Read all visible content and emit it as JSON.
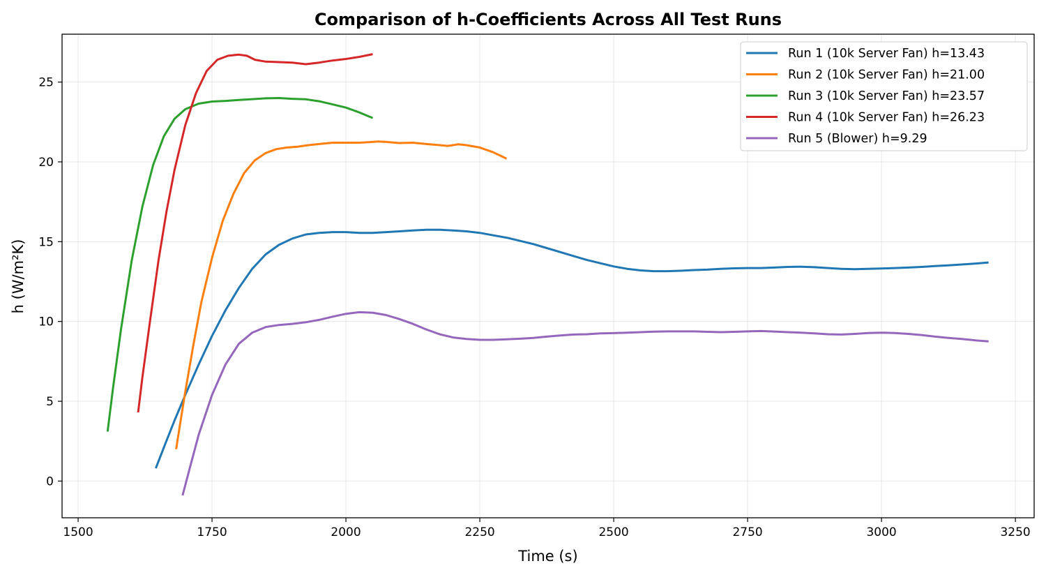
{
  "chart_data": {
    "type": "line",
    "title": "Comparison of h-Coefficients Across All Test Runs",
    "xlabel": "Time (s)",
    "ylabel": "h (W/m²K)",
    "xlim": [
      1470,
      3285
    ],
    "ylim": [
      -2.3,
      28.0
    ],
    "xticks": [
      1500,
      1750,
      2000,
      2250,
      2500,
      2750,
      3000,
      3250
    ],
    "yticks": [
      0,
      5,
      10,
      15,
      20,
      25
    ],
    "grid": true,
    "legend_position": "upper-right",
    "series": [
      {
        "name": "Run 1 (10k Server Fan) h=13.43",
        "color": "#1f77b4",
        "points": [
          [
            1645,
            0.8
          ],
          [
            1660,
            2.1
          ],
          [
            1680,
            3.8
          ],
          [
            1700,
            5.4
          ],
          [
            1725,
            7.3
          ],
          [
            1750,
            9.1
          ],
          [
            1775,
            10.7
          ],
          [
            1800,
            12.1
          ],
          [
            1825,
            13.3
          ],
          [
            1850,
            14.2
          ],
          [
            1875,
            14.8
          ],
          [
            1900,
            15.2
          ],
          [
            1925,
            15.45
          ],
          [
            1950,
            15.55
          ],
          [
            1975,
            15.6
          ],
          [
            2000,
            15.6
          ],
          [
            2025,
            15.55
          ],
          [
            2050,
            15.55
          ],
          [
            2075,
            15.6
          ],
          [
            2100,
            15.65
          ],
          [
            2125,
            15.7
          ],
          [
            2150,
            15.75
          ],
          [
            2175,
            15.75
          ],
          [
            2200,
            15.7
          ],
          [
            2225,
            15.65
          ],
          [
            2250,
            15.55
          ],
          [
            2275,
            15.4
          ],
          [
            2300,
            15.25
          ],
          [
            2325,
            15.05
          ],
          [
            2350,
            14.85
          ],
          [
            2375,
            14.6
          ],
          [
            2400,
            14.35
          ],
          [
            2425,
            14.1
          ],
          [
            2450,
            13.85
          ],
          [
            2475,
            13.65
          ],
          [
            2500,
            13.45
          ],
          [
            2525,
            13.3
          ],
          [
            2550,
            13.2
          ],
          [
            2575,
            13.15
          ],
          [
            2600,
            13.15
          ],
          [
            2625,
            13.18
          ],
          [
            2650,
            13.22
          ],
          [
            2675,
            13.25
          ],
          [
            2700,
            13.3
          ],
          [
            2725,
            13.33
          ],
          [
            2750,
            13.35
          ],
          [
            2775,
            13.35
          ],
          [
            2800,
            13.38
          ],
          [
            2825,
            13.42
          ],
          [
            2850,
            13.43
          ],
          [
            2875,
            13.4
          ],
          [
            2900,
            13.35
          ],
          [
            2925,
            13.3
          ],
          [
            2950,
            13.28
          ],
          [
            2975,
            13.3
          ],
          [
            3000,
            13.32
          ],
          [
            3025,
            13.35
          ],
          [
            3050,
            13.38
          ],
          [
            3075,
            13.42
          ],
          [
            3100,
            13.47
          ],
          [
            3125,
            13.52
          ],
          [
            3150,
            13.57
          ],
          [
            3175,
            13.63
          ],
          [
            3200,
            13.7
          ]
        ]
      },
      {
        "name": "Run 2 (10k Server Fan) h=21.00",
        "color": "#ff7f0e",
        "points": [
          [
            1683,
            2.0
          ],
          [
            1690,
            3.5
          ],
          [
            1700,
            5.6
          ],
          [
            1715,
            8.5
          ],
          [
            1730,
            11.2
          ],
          [
            1750,
            14.0
          ],
          [
            1770,
            16.3
          ],
          [
            1790,
            18.0
          ],
          [
            1810,
            19.3
          ],
          [
            1830,
            20.1
          ],
          [
            1850,
            20.55
          ],
          [
            1870,
            20.8
          ],
          [
            1890,
            20.9
          ],
          [
            1910,
            20.95
          ],
          [
            1930,
            21.05
          ],
          [
            1950,
            21.12
          ],
          [
            1975,
            21.2
          ],
          [
            2000,
            21.2
          ],
          [
            2025,
            21.2
          ],
          [
            2050,
            21.25
          ],
          [
            2060,
            21.28
          ],
          [
            2075,
            21.25
          ],
          [
            2100,
            21.18
          ],
          [
            2125,
            21.2
          ],
          [
            2150,
            21.12
          ],
          [
            2175,
            21.05
          ],
          [
            2190,
            21.0
          ],
          [
            2200,
            21.05
          ],
          [
            2210,
            21.1
          ],
          [
            2225,
            21.05
          ],
          [
            2250,
            20.9
          ],
          [
            2275,
            20.6
          ],
          [
            2300,
            20.2
          ]
        ]
      },
      {
        "name": "Run 3 (10k Server Fan) h=23.57",
        "color": "#2ca02c",
        "points": [
          [
            1555,
            3.1
          ],
          [
            1565,
            5.8
          ],
          [
            1580,
            9.5
          ],
          [
            1600,
            13.8
          ],
          [
            1620,
            17.2
          ],
          [
            1640,
            19.8
          ],
          [
            1660,
            21.6
          ],
          [
            1680,
            22.7
          ],
          [
            1700,
            23.3
          ],
          [
            1725,
            23.65
          ],
          [
            1750,
            23.78
          ],
          [
            1775,
            23.82
          ],
          [
            1800,
            23.88
          ],
          [
            1825,
            23.93
          ],
          [
            1850,
            23.98
          ],
          [
            1875,
            24.0
          ],
          [
            1900,
            23.95
          ],
          [
            1925,
            23.92
          ],
          [
            1950,
            23.8
          ],
          [
            1975,
            23.6
          ],
          [
            2000,
            23.4
          ],
          [
            2025,
            23.1
          ],
          [
            2050,
            22.75
          ]
        ]
      },
      {
        "name": "Run 4 (10k Server Fan) h=26.23",
        "color": "#d62728",
        "points": [
          [
            1612,
            4.3
          ],
          [
            1620,
            6.5
          ],
          [
            1635,
            10.2
          ],
          [
            1650,
            13.8
          ],
          [
            1665,
            16.9
          ],
          [
            1680,
            19.5
          ],
          [
            1700,
            22.3
          ],
          [
            1720,
            24.3
          ],
          [
            1740,
            25.7
          ],
          [
            1760,
            26.4
          ],
          [
            1780,
            26.65
          ],
          [
            1800,
            26.72
          ],
          [
            1815,
            26.65
          ],
          [
            1830,
            26.4
          ],
          [
            1850,
            26.28
          ],
          [
            1875,
            26.25
          ],
          [
            1900,
            26.22
          ],
          [
            1925,
            26.12
          ],
          [
            1950,
            26.22
          ],
          [
            1975,
            26.35
          ],
          [
            2000,
            26.45
          ],
          [
            2025,
            26.58
          ],
          [
            2050,
            26.75
          ]
        ]
      },
      {
        "name": "Run 5 (Blower) h=9.29",
        "color": "#9467bd",
        "points": [
          [
            1695,
            -0.9
          ],
          [
            1710,
            1.0
          ],
          [
            1725,
            2.9
          ],
          [
            1750,
            5.4
          ],
          [
            1775,
            7.3
          ],
          [
            1800,
            8.6
          ],
          [
            1825,
            9.3
          ],
          [
            1850,
            9.65
          ],
          [
            1875,
            9.78
          ],
          [
            1900,
            9.85
          ],
          [
            1925,
            9.95
          ],
          [
            1950,
            10.1
          ],
          [
            1975,
            10.3
          ],
          [
            2000,
            10.48
          ],
          [
            2025,
            10.58
          ],
          [
            2050,
            10.55
          ],
          [
            2075,
            10.4
          ],
          [
            2100,
            10.15
          ],
          [
            2125,
            9.85
          ],
          [
            2150,
            9.5
          ],
          [
            2175,
            9.2
          ],
          [
            2200,
            9.0
          ],
          [
            2225,
            8.9
          ],
          [
            2250,
            8.85
          ],
          [
            2275,
            8.85
          ],
          [
            2300,
            8.88
          ],
          [
            2325,
            8.92
          ],
          [
            2350,
            8.97
          ],
          [
            2375,
            9.05
          ],
          [
            2400,
            9.12
          ],
          [
            2425,
            9.18
          ],
          [
            2450,
            9.2
          ],
          [
            2475,
            9.25
          ],
          [
            2500,
            9.27
          ],
          [
            2525,
            9.3
          ],
          [
            2550,
            9.33
          ],
          [
            2575,
            9.36
          ],
          [
            2600,
            9.38
          ],
          [
            2625,
            9.38
          ],
          [
            2650,
            9.38
          ],
          [
            2675,
            9.35
          ],
          [
            2700,
            9.33
          ],
          [
            2725,
            9.35
          ],
          [
            2750,
            9.38
          ],
          [
            2775,
            9.4
          ],
          [
            2800,
            9.37
          ],
          [
            2825,
            9.33
          ],
          [
            2850,
            9.3
          ],
          [
            2875,
            9.25
          ],
          [
            2900,
            9.2
          ],
          [
            2925,
            9.18
          ],
          [
            2950,
            9.22
          ],
          [
            2975,
            9.28
          ],
          [
            3000,
            9.3
          ],
          [
            3025,
            9.28
          ],
          [
            3050,
            9.22
          ],
          [
            3075,
            9.15
          ],
          [
            3100,
            9.05
          ],
          [
            3125,
            8.97
          ],
          [
            3150,
            8.9
          ],
          [
            3175,
            8.82
          ],
          [
            3200,
            8.75
          ]
        ]
      }
    ]
  }
}
